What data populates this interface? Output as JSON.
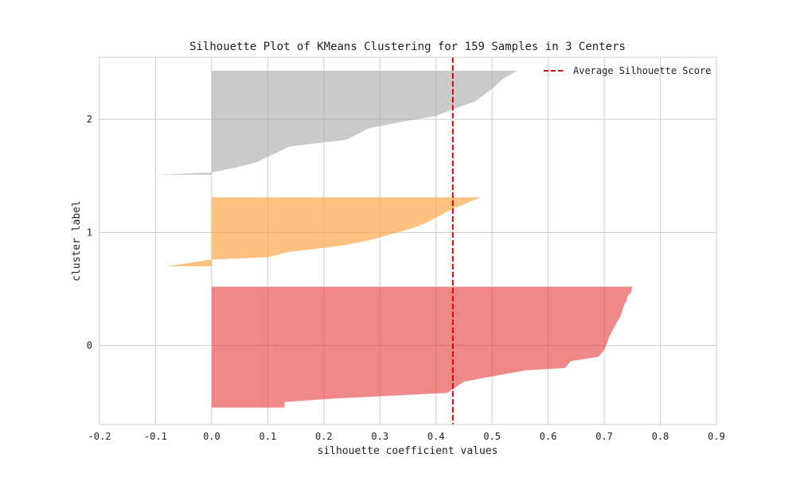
{
  "chart_data": {
    "type": "area",
    "title": "Silhouette Plot of KMeans Clustering for 159 Samples in 3 Centers",
    "xlabel": "silhouette coefficient values",
    "ylabel": "cluster label",
    "xlim": [
      -0.2,
      0.9
    ],
    "x_ticks": [
      "-0.2",
      "-0.1",
      "0.0",
      "0.1",
      "0.2",
      "0.3",
      "0.4",
      "0.5",
      "0.6",
      "0.7",
      "0.8",
      "0.9"
    ],
    "x_tick_values": [
      -0.2,
      -0.1,
      0.0,
      0.1,
      0.2,
      0.3,
      0.4,
      0.5,
      0.6,
      0.7,
      0.8,
      0.9
    ],
    "y_ticks": [
      "0",
      "1",
      "2"
    ],
    "y_tick_values": [
      0,
      1,
      2
    ],
    "grid": true,
    "legend_position": "top-right",
    "average_silhouette_score": 0.43,
    "average_label": "Average Silhouette Score",
    "average_color": "#e00000",
    "clusters": [
      {
        "label": "0",
        "color": "#e8474a",
        "opacity": 0.65,
        "y_range": [
          -0.55,
          0.52
        ],
        "profile": [
          [
            0.75,
            0.52
          ],
          [
            0.748,
            0.47
          ],
          [
            0.742,
            0.44
          ],
          [
            0.74,
            0.4
          ],
          [
            0.735,
            0.35
          ],
          [
            0.73,
            0.27
          ],
          [
            0.72,
            0.18
          ],
          [
            0.71,
            0.09
          ],
          [
            0.705,
            0.02
          ],
          [
            0.7,
            -0.04
          ],
          [
            0.69,
            -0.1
          ],
          [
            0.64,
            -0.14
          ],
          [
            0.635,
            -0.17
          ],
          [
            0.63,
            -0.2
          ],
          [
            0.56,
            -0.22
          ],
          [
            0.45,
            -0.32
          ],
          [
            0.42,
            -0.42
          ],
          [
            0.22,
            -0.47
          ],
          [
            0.13,
            -0.5
          ],
          [
            0.13,
            -0.55
          ],
          [
            0.0,
            -0.55
          ]
        ]
      },
      {
        "label": "1",
        "color": "#fd9f3c",
        "opacity": 0.65,
        "y_range": [
          0.7,
          1.31
        ],
        "profile": [
          [
            0.48,
            1.31
          ],
          [
            0.43,
            1.21
          ],
          [
            0.4,
            1.13
          ],
          [
            0.38,
            1.08
          ],
          [
            0.36,
            1.04
          ],
          [
            0.31,
            0.97
          ],
          [
            0.28,
            0.93
          ],
          [
            0.24,
            0.89
          ],
          [
            0.18,
            0.85
          ],
          [
            0.14,
            0.83
          ],
          [
            0.1,
            0.78
          ],
          [
            0.0,
            0.76
          ],
          [
            -0.04,
            0.73
          ],
          [
            -0.08,
            0.7
          ]
        ]
      },
      {
        "label": "2",
        "color": "#a6a6a6",
        "opacity": 0.6,
        "y_range": [
          1.51,
          2.43
        ],
        "profile": [
          [
            0.545,
            2.43
          ],
          [
            0.52,
            2.36
          ],
          [
            0.5,
            2.27
          ],
          [
            0.47,
            2.16
          ],
          [
            0.43,
            2.09
          ],
          [
            0.4,
            2.03
          ],
          [
            0.34,
            1.98
          ],
          [
            0.28,
            1.92
          ],
          [
            0.24,
            1.82
          ],
          [
            0.14,
            1.76
          ],
          [
            0.1,
            1.67
          ],
          [
            0.08,
            1.62
          ],
          [
            0.04,
            1.57
          ],
          [
            0.0,
            1.53
          ],
          [
            -0.1,
            1.51
          ]
        ]
      }
    ]
  }
}
